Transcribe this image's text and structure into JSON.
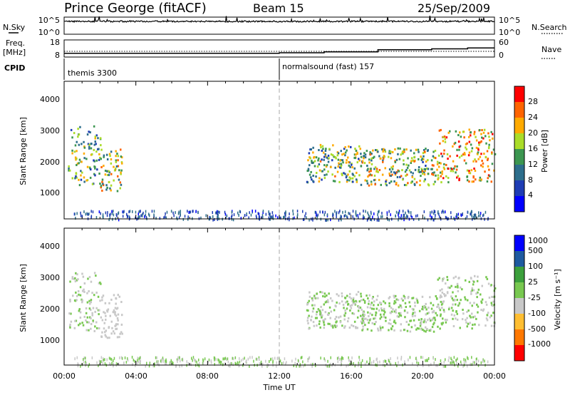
{
  "header": {
    "station": "Prince George (fitACF)",
    "beam": "Beam 15",
    "date": "25/Sep/2009"
  },
  "nsky_panel": {
    "left_label": "N.Sky",
    "right_label": "N.Search",
    "y_top_left": "10^5",
    "y_bottom_left": "10^0",
    "y_top_right": "10^5",
    "y_bottom_right": "10^0"
  },
  "freq_panel": {
    "left_label_line1": "Freq.",
    "left_label_line2": "[MHz]",
    "right_label": "Nave",
    "y_top_left": "18",
    "y_bottom_left": "8",
    "y_top_right": "60",
    "y_bottom_right": "0"
  },
  "cpid": {
    "label": "CPID",
    "segments": [
      {
        "start_hour": 0,
        "text": "themis 3300"
      },
      {
        "start_hour": 12,
        "text": "normalsound (fast) 157"
      }
    ]
  },
  "power_panel": {
    "ylabel": "Slant Range [km]",
    "yticks": [
      "1000",
      "2000",
      "3000",
      "4000"
    ],
    "colorbar_label": "Power [dB]",
    "colorbar_ticks": [
      "4",
      "8",
      "12",
      "16",
      "20",
      "24",
      "28"
    ]
  },
  "velocity_panel": {
    "ylabel": "Slant Range [km]",
    "yticks": [
      "1000",
      "2000",
      "3000",
      "4000"
    ],
    "colorbar_label": "Velocity [m s⁻¹]",
    "colorbar_ticks": [
      "-1000",
      "-500",
      "-100",
      "-25",
      "25",
      "100",
      "500",
      "1000"
    ]
  },
  "x_axis": {
    "label": "Time UT",
    "ticks": [
      "00:00",
      "04:00",
      "08:00",
      "12:00",
      "16:00",
      "20:00",
      "00:00"
    ]
  },
  "chart_data": {
    "type": "heatmap",
    "x_range_hours": [
      0,
      24
    ],
    "y_range_km": [
      200,
      4600
    ],
    "power_colorscale": [
      "#0000ff",
      "#1e3cb4",
      "#2d6e8c",
      "#3c9650",
      "#aadc28",
      "#ffaa00",
      "#ff6400",
      "#ff0000"
    ],
    "power_range_db": [
      0,
      30
    ],
    "velocity_colorscale": [
      "#ff0000",
      "#ff7800",
      "#ffbe32",
      "#c8c8c8",
      "#78c850",
      "#3ca03c",
      "#1e5aa0",
      "#0000ff"
    ],
    "velocity_range": [
      -1000,
      1000
    ],
    "scatter_regions": [
      {
        "t0": 0.2,
        "t1": 2.0,
        "r0": 1300,
        "r1": 3200,
        "power_mean": 13,
        "velocity_mean": -15
      },
      {
        "t0": 2.0,
        "t1": 3.2,
        "r0": 1100,
        "r1": 2500,
        "power_mean": 17,
        "velocity_mean": -60
      },
      {
        "t0": 13.5,
        "t1": 16.5,
        "r0": 1400,
        "r1": 2600,
        "power_mean": 14,
        "velocity_mean": 0
      },
      {
        "t0": 16.5,
        "t1": 20.8,
        "r0": 1300,
        "r1": 2500,
        "power_mean": 16,
        "velocity_mean": 0
      },
      {
        "t0": 20.8,
        "t1": 24.0,
        "r0": 1400,
        "r1": 3100,
        "power_mean": 20,
        "velocity_mean": 5
      }
    ],
    "ground_scatter_band_km": [
      200,
      500
    ],
    "nsky_trace_level": 0.75,
    "freq_trace_mhz": [
      {
        "t0": 0,
        "t1": 12,
        "mhz": 10.2
      },
      {
        "t0": 12,
        "t1": 14.5,
        "mhz": 10.5
      },
      {
        "t0": 14.5,
        "t1": 17.5,
        "mhz": 11.0
      },
      {
        "t0": 17.5,
        "t1": 20.5,
        "mhz": 12.3
      },
      {
        "t0": 20.5,
        "t1": 22.5,
        "mhz": 12.8
      },
      {
        "t0": 22.5,
        "t1": 24,
        "mhz": 13.3
      }
    ],
    "nave_level": 20
  }
}
